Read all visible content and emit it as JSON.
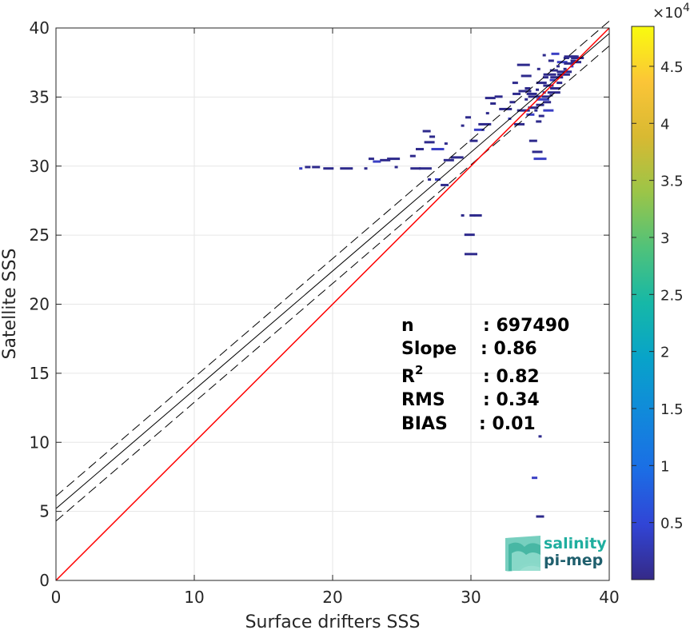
{
  "chart_data": {
    "type": "heatmap",
    "title": "",
    "xlabel": "Surface drifters SSS",
    "ylabel": "Satellite SSS",
    "xlim": [
      0,
      40
    ],
    "ylim": [
      0,
      40
    ],
    "xticks": [
      0,
      10,
      20,
      30,
      40
    ],
    "yticks": [
      0,
      5,
      10,
      15,
      20,
      25,
      30,
      35,
      40
    ],
    "grid": true,
    "colormap": "parula",
    "colorbar": {
      "exponent_label": "×10",
      "exponent_power": "4",
      "ticks": [
        "0.5",
        "1",
        "1.5",
        "2",
        "2.5",
        "3",
        "3.5",
        "4",
        "4.5"
      ],
      "tick_values": [
        0.5,
        1,
        1.5,
        2,
        2.5,
        3,
        3.5,
        4,
        4.5
      ],
      "range": [
        0,
        4.85
      ]
    },
    "lines": {
      "identity": {
        "color": "#ff0000",
        "x": [
          0,
          40
        ],
        "y": [
          0,
          40
        ]
      },
      "fit": {
        "color": "#000000",
        "style": "solid",
        "x": [
          0,
          40
        ],
        "y": [
          5.2,
          39.6
        ]
      },
      "fit_upper": {
        "color": "#000000",
        "style": "dashed",
        "x": [
          0,
          40
        ],
        "y": [
          6.1,
          40.5
        ]
      },
      "fit_lower": {
        "color": "#000000",
        "style": "dashed",
        "x": [
          0,
          40
        ],
        "y": [
          4.3,
          38.7
        ]
      }
    },
    "stats": [
      {
        "label": "n",
        "value": ": 697490"
      },
      {
        "label": "Slope",
        "value": ": 0.86"
      },
      {
        "label": "R",
        "sup": "2",
        "value": ": 0.82"
      },
      {
        "label": "RMS",
        "value": ": 0.34"
      },
      {
        "label": "BIAS",
        "value": ": 0.01"
      }
    ],
    "density_points": [
      [
        17.7,
        29.8
      ],
      [
        18.2,
        29.9
      ],
      [
        18.8,
        29.9
      ],
      [
        19.7,
        29.8
      ],
      [
        21.0,
        29.8
      ],
      [
        22.4,
        29.8
      ],
      [
        22.8,
        30.5
      ],
      [
        23.2,
        30.3
      ],
      [
        23.8,
        30.4
      ],
      [
        24.4,
        30.5
      ],
      [
        24.6,
        29.9
      ],
      [
        25.8,
        30.7
      ],
      [
        26.3,
        31.2
      ],
      [
        27.0,
        31.7
      ],
      [
        27.6,
        31.2
      ],
      [
        28.2,
        31.6
      ],
      [
        27.2,
        32.1
      ],
      [
        26.8,
        32.5
      ],
      [
        26.0,
        29.8
      ],
      [
        26.7,
        29.8
      ],
      [
        27.0,
        29.0
      ],
      [
        27.6,
        29.0
      ],
      [
        28.1,
        28.6
      ],
      [
        28.4,
        30.4
      ],
      [
        29.0,
        30.6
      ],
      [
        29.4,
        32.9
      ],
      [
        29.8,
        33.5
      ],
      [
        30.2,
        31.8
      ],
      [
        30.6,
        32.6
      ],
      [
        31.0,
        33.0
      ],
      [
        31.2,
        33.8
      ],
      [
        31.6,
        34.5
      ],
      [
        32.0,
        35.0
      ],
      [
        31.4,
        34.9
      ],
      [
        32.5,
        34.1
      ],
      [
        32.8,
        33.4
      ],
      [
        33.0,
        34.6
      ],
      [
        33.3,
        35.2
      ],
      [
        33.5,
        33.0
      ],
      [
        33.8,
        34.0
      ],
      [
        34.0,
        34.8
      ],
      [
        34.1,
        35.6
      ],
      [
        34.3,
        33.7
      ],
      [
        34.5,
        34.2
      ],
      [
        34.6,
        35.0
      ],
      [
        34.8,
        35.5
      ],
      [
        34.9,
        33.2
      ],
      [
        35.0,
        34.4
      ],
      [
        35.1,
        36.0
      ],
      [
        35.2,
        34.8
      ],
      [
        35.3,
        35.3
      ],
      [
        35.4,
        36.4
      ],
      [
        35.5,
        34.6
      ],
      [
        35.6,
        35.8
      ],
      [
        35.7,
        36.6
      ],
      [
        35.8,
        35.1
      ],
      [
        35.9,
        36.2
      ],
      [
        36.0,
        36.9
      ],
      [
        36.1,
        35.6
      ],
      [
        36.2,
        36.4
      ],
      [
        36.3,
        37.2
      ],
      [
        36.4,
        36.0
      ],
      [
        36.5,
        36.8
      ],
      [
        36.6,
        37.5
      ],
      [
        36.7,
        36.6
      ],
      [
        36.8,
        37.0
      ],
      [
        36.9,
        37.8
      ],
      [
        37.0,
        36.8
      ],
      [
        37.1,
        37.4
      ],
      [
        37.2,
        37.9
      ],
      [
        37.3,
        37.2
      ],
      [
        37.4,
        37.6
      ],
      [
        37.5,
        37.9
      ],
      [
        37.6,
        37.5
      ],
      [
        37.7,
        37.8
      ],
      [
        35.3,
        38.0
      ],
      [
        35.8,
        37.6
      ],
      [
        36.1,
        38.1
      ],
      [
        34.0,
        36.5
      ],
      [
        33.8,
        37.3
      ],
      [
        34.9,
        37.0
      ],
      [
        33.2,
        36.0
      ],
      [
        34.5,
        31.8
      ],
      [
        34.8,
        31.0
      ],
      [
        35.0,
        30.5
      ],
      [
        29.4,
        26.4
      ],
      [
        30.1,
        26.4
      ],
      [
        30.5,
        26.4
      ],
      [
        29.9,
        25.0
      ],
      [
        30.0,
        23.6
      ],
      [
        35.0,
        10.4
      ],
      [
        34.6,
        7.4
      ],
      [
        35.0,
        4.6
      ],
      [
        34.4,
        35.2
      ],
      [
        33.9,
        35.4
      ],
      [
        34.7,
        34.0
      ],
      [
        35.1,
        33.6
      ],
      [
        35.4,
        35.0
      ],
      [
        35.6,
        34.0
      ],
      [
        36.0,
        35.3
      ]
    ]
  },
  "logo": {
    "line1": "salinity",
    "line2": "pi-mep",
    "color1": "#1fae9f",
    "color2": "#1f5f6d"
  }
}
